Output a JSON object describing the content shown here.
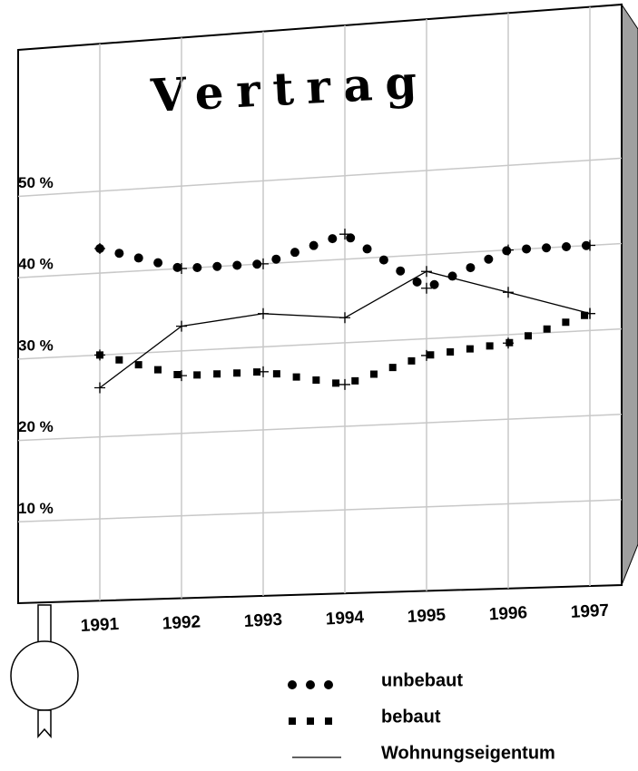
{
  "chart_data": {
    "type": "line",
    "title": "Vertrag",
    "categories": [
      "1991",
      "1992",
      "1993",
      "1994",
      "1995",
      "1996",
      "1997"
    ],
    "series": [
      {
        "name": "unbebaut",
        "color": "#000000",
        "marker": "circle",
        "values": [
          43,
          40,
          40,
          43,
          36,
          40,
          40
        ]
      },
      {
        "name": "bebaut",
        "color": "#000000",
        "marker": "square",
        "values": [
          30,
          27,
          27,
          25,
          28,
          29,
          32
        ]
      },
      {
        "name": "Wohnungseigentum",
        "color": "#000000",
        "marker": "none",
        "values": [
          26,
          33,
          34,
          33,
          38,
          35,
          32
        ]
      }
    ],
    "ylim": [
      0,
      68
    ],
    "yticks": [
      {
        "value": 10,
        "label": "10 %"
      },
      {
        "value": 20,
        "label": "20 %"
      },
      {
        "value": 30,
        "label": "30 %"
      },
      {
        "value": 40,
        "label": "40 %"
      },
      {
        "value": 50,
        "label": "50 %"
      }
    ],
    "grid": true
  }
}
